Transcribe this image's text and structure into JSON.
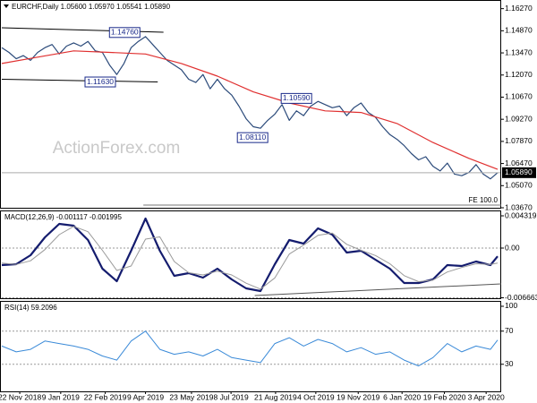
{
  "chart_data": [
    {
      "type": "line",
      "title": "EURCHF,Daily  1.05600 1.05970 1.05541 1.05890",
      "watermark": "ActionForex.com",
      "xlim": [
        0,
        69
      ],
      "ylim": [
        1.0367,
        1.1676
      ],
      "yticks": [
        {
          "value": 1.1627,
          "label": "1.16270"
        },
        {
          "value": 1.1487,
          "label": "1.14870"
        },
        {
          "value": 1.1347,
          "label": "1.13470"
        },
        {
          "value": 1.1207,
          "label": "1.12070"
        },
        {
          "value": 1.1067,
          "label": "1.10670"
        },
        {
          "value": 1.0927,
          "label": "1.09270"
        },
        {
          "value": 1.0787,
          "label": "1.07870"
        },
        {
          "value": 1.0647,
          "label": "1.06470"
        },
        {
          "value": 1.0507,
          "label": "1.05070"
        },
        {
          "value": 1.0367,
          "label": "1.03670"
        }
      ],
      "series": [
        {
          "color": "#2b4a7a",
          "values": [
            1.138,
            1.135,
            1.131,
            1.133,
            1.13,
            1.135,
            1.138,
            1.14,
            1.134,
            1.139,
            1.141,
            1.139,
            1.142,
            1.136,
            1.135,
            1.127,
            1.121,
            1.128,
            1.138,
            1.142,
            1.145,
            1.14,
            1.135,
            1.13,
            1.127,
            1.124,
            1.118,
            1.116,
            1.121,
            1.112,
            1.118,
            1.112,
            1.108,
            1.101,
            1.093,
            1.088,
            1.087,
            1.092,
            1.096,
            1.102,
            1.092,
            1.098,
            1.095,
            1.101,
            1.104,
            1.102,
            1.1,
            1.101,
            1.095,
            1.1,
            1.103,
            1.097,
            1.094,
            1.088,
            1.083,
            1.08,
            1.076,
            1.071,
            1.067,
            1.069,
            1.063,
            1.06,
            1.065,
            1.058,
            1.057,
            1.059,
            1.064,
            1.058,
            1.055,
            1.0589
          ]
        },
        {
          "color": "#e03030",
          "x": [
            0,
            5,
            10,
            15,
            20,
            25,
            30,
            35,
            40,
            45,
            50,
            55,
            60,
            65,
            69
          ],
          "values": [
            1.128,
            1.132,
            1.136,
            1.135,
            1.134,
            1.128,
            1.12,
            1.11,
            1.103,
            1.098,
            1.097,
            1.09,
            1.078,
            1.068,
            1.061
          ]
        }
      ],
      "annotations": [
        {
          "value": 1.1476,
          "label": "1.14760",
          "x": 17.1
        },
        {
          "value": 1.1163,
          "label": "1.11630",
          "x": 13.7
        },
        {
          "value": 1.0811,
          "label": "1.08110",
          "x": 34.9
        },
        {
          "value": 1.1059,
          "label": "1.10590",
          "x": 41
        }
      ],
      "trendlines": [
        {
          "x": [
            0,
            22.5
          ],
          "y": [
            1.1506,
            1.1478
          ]
        },
        {
          "x": [
            0,
            21.7
          ],
          "y": [
            1.118,
            1.1163
          ]
        }
      ],
      "fe_line": {
        "label": "FE 100.0",
        "value": 1.0384,
        "x": [
          19.7,
          69.5
        ]
      },
      "last_price": {
        "value": 1.0589,
        "label": "1.05890"
      }
    },
    {
      "type": "line",
      "title": "MACD(12,26,9) -0.001117 -0.001995",
      "xlim": [
        0,
        69
      ],
      "ylim": [
        -0.00672,
        0.00492
      ],
      "yticks": [
        0.004319,
        {
          "value": 0,
          "label": "0.00"
        },
        -0.006663
      ],
      "x": [
        0,
        2,
        4,
        6,
        8,
        10,
        12,
        14,
        16,
        18,
        20,
        22,
        24,
        26,
        28,
        30,
        32,
        34,
        36,
        38,
        40,
        42,
        44,
        46,
        48,
        50,
        52,
        54,
        56,
        58,
        60,
        62,
        64,
        66,
        68,
        69
      ],
      "series": [
        {
          "color": "#141c6e",
          "width": 2.2,
          "values": [
            -0.00228,
            -0.00216,
            -0.00096,
            0.00144,
            0.00324,
            0.003,
            0.00108,
            -0.00276,
            -0.00444,
            -0.00036,
            0.00396,
            -0.00036,
            -0.00372,
            -0.00336,
            -0.00396,
            -0.00276,
            -0.0042,
            -0.0054,
            -0.00576,
            -0.00216,
            0.00108,
            0.0006,
            0.00264,
            0.0018,
            -0.0006,
            -0.00036,
            -0.00156,
            -0.00276,
            -0.00468,
            -0.00468,
            -0.0042,
            -0.00228,
            -0.0024,
            -0.0018,
            -0.00228,
            -0.0011
          ]
        },
        {
          "color": "#9a9a9a",
          "width": 1,
          "values": [
            -0.002,
            -0.0022,
            -0.0017,
            -0.0002,
            0.0018,
            0.0029,
            0.0022,
            -0.0003,
            -0.003,
            -0.0024,
            0.0012,
            0.0015,
            -0.0018,
            -0.0033,
            -0.0036,
            -0.0031,
            -0.0036,
            -0.0047,
            -0.0055,
            -0.004,
            -0.0008,
            0.0004,
            0.0017,
            0.002,
            0.0005,
            -0.0003,
            -0.001,
            -0.0021,
            -0.0037,
            -0.0045,
            -0.0043,
            -0.0032,
            -0.0026,
            -0.0021,
            -0.0022,
            -0.002
          ]
        }
      ],
      "trendlines": [
        {
          "x": [
            35.2,
            69.5
          ],
          "y": [
            -0.00636,
            -0.0048
          ]
        }
      ]
    },
    {
      "type": "line",
      "title": "RSI(14) 59.2096",
      "xlim": [
        0,
        69
      ],
      "ylim": [
        -2.7,
        105.4
      ],
      "yticks": [
        100,
        70,
        30
      ],
      "x": [
        0,
        2,
        4,
        6,
        8,
        10,
        12,
        14,
        16,
        18,
        20,
        22,
        24,
        26,
        28,
        30,
        32,
        34,
        36,
        38,
        40,
        42,
        44,
        46,
        48,
        50,
        52,
        54,
        56,
        58,
        60,
        62,
        64,
        66,
        68,
        69
      ],
      "series": [
        {
          "color": "#3a8ad8",
          "width": 1,
          "values": [
            52,
            45,
            48,
            58,
            55,
            52,
            48,
            40,
            35,
            58,
            70,
            48,
            42,
            45,
            40,
            48,
            38,
            35,
            32,
            55,
            62,
            52,
            60,
            55,
            45,
            50,
            42,
            45,
            35,
            28,
            38,
            55,
            45,
            52,
            48,
            59.2
          ]
        }
      ],
      "xticks": [
        {
          "value": 2.5,
          "label": "22 Nov 2018"
        },
        {
          "value": 8.2,
          "label": "9 Jan 2019"
        },
        {
          "value": 14.4,
          "label": "22 Feb 2019"
        },
        {
          "value": 20.0,
          "label": "9 Apr 2019"
        },
        {
          "value": 26.4,
          "label": "23 May 2019"
        },
        {
          "value": 31.9,
          "label": "8 Jul 2019"
        },
        {
          "value": 38.1,
          "label": "21 Aug 2019"
        },
        {
          "value": 43.7,
          "label": "4 Oct 2019"
        },
        {
          "value": 49.6,
          "label": "19 Nov 2019"
        },
        {
          "value": 55.7,
          "label": "6 Jan 2020"
        },
        {
          "value": 61.6,
          "label": "19 Feb 2020"
        },
        {
          "value": 67.4,
          "label": "3 Apr 2020"
        }
      ]
    }
  ]
}
